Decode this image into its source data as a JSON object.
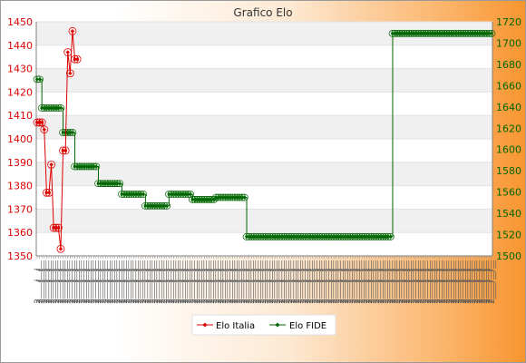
{
  "chart_data": {
    "type": "line",
    "title": "Grafico Elo",
    "legend_position": "bottom-center",
    "grid": true,
    "colors": {
      "italia": "#dd0000",
      "fide": "#006600",
      "band": "#f0f0f0",
      "axis": "#7f7f7f",
      "text": "#333333"
    },
    "y_left": {
      "ticks": [
        1350,
        1360,
        1370,
        1380,
        1390,
        1400,
        1410,
        1420,
        1430,
        1440,
        1450
      ],
      "min": 1350,
      "max": 1450
    },
    "y_right": {
      "ticks": [
        1500,
        1520,
        1540,
        1560,
        1580,
        1600,
        1620,
        1640,
        1660,
        1680,
        1700,
        1720
      ],
      "min": 1500,
      "max": 1720
    },
    "series": [
      {
        "name": "Elo Italia",
        "axis": "left",
        "values": [
          1407,
          1407,
          1407,
          1404,
          1377,
          1377,
          1389,
          1362,
          1362,
          1362,
          1353,
          1395,
          1395,
          1437,
          1428,
          1446,
          1434,
          1434
        ]
      },
      {
        "name": "Elo FIDE",
        "axis": "right",
        "values": [
          1666,
          1666,
          1639,
          1639,
          1639,
          1639,
          1639,
          1639,
          1639,
          1639,
          1639,
          1616,
          1616,
          1616,
          1616,
          1616,
          1584,
          1584,
          1584,
          1584,
          1584,
          1584,
          1584,
          1584,
          1584,
          1584,
          1568,
          1568,
          1568,
          1568,
          1568,
          1568,
          1568,
          1568,
          1568,
          1568,
          1558,
          1558,
          1558,
          1558,
          1558,
          1558,
          1558,
          1558,
          1558,
          1558,
          1547,
          1547,
          1547,
          1547,
          1547,
          1547,
          1547,
          1547,
          1547,
          1547,
          1558,
          1558,
          1558,
          1558,
          1558,
          1558,
          1558,
          1558,
          1558,
          1558,
          1553,
          1553,
          1553,
          1553,
          1553,
          1553,
          1553,
          1553,
          1553,
          1553,
          1555,
          1555,
          1555,
          1555,
          1555,
          1555,
          1555,
          1555,
          1555,
          1555,
          1555,
          1555,
          1555,
          1518,
          1518,
          1518,
          1518,
          1518,
          1518,
          1518,
          1518,
          1518,
          1518,
          1518,
          1518,
          1518,
          1518,
          1518,
          1518,
          1518,
          1518,
          1518,
          1518,
          1518,
          1518,
          1518,
          1518,
          1518,
          1518,
          1518,
          1518,
          1518,
          1518,
          1518,
          1518,
          1518,
          1518,
          1518,
          1518,
          1518,
          1518,
          1518,
          1518,
          1518,
          1518,
          1518,
          1518,
          1518,
          1518,
          1518,
          1518,
          1518,
          1518,
          1518,
          1518,
          1518,
          1518,
          1518,
          1518,
          1518,
          1518,
          1518,
          1518,
          1518,
          1518,
          1709,
          1709,
          1709,
          1709,
          1709,
          1709,
          1709,
          1709,
          1709,
          1709,
          1709,
          1709,
          1709,
          1709,
          1709,
          1709,
          1709,
          1709,
          1709,
          1709,
          1709,
          1709,
          1709,
          1709,
          1709,
          1709,
          1709,
          1709,
          1709,
          1709,
          1709,
          1709,
          1709,
          1709,
          1709,
          1709,
          1709,
          1709,
          1709,
          1709,
          1709,
          1709,
          1709
        ]
      }
    ],
    "x_tick_label_prefix": "2"
  }
}
